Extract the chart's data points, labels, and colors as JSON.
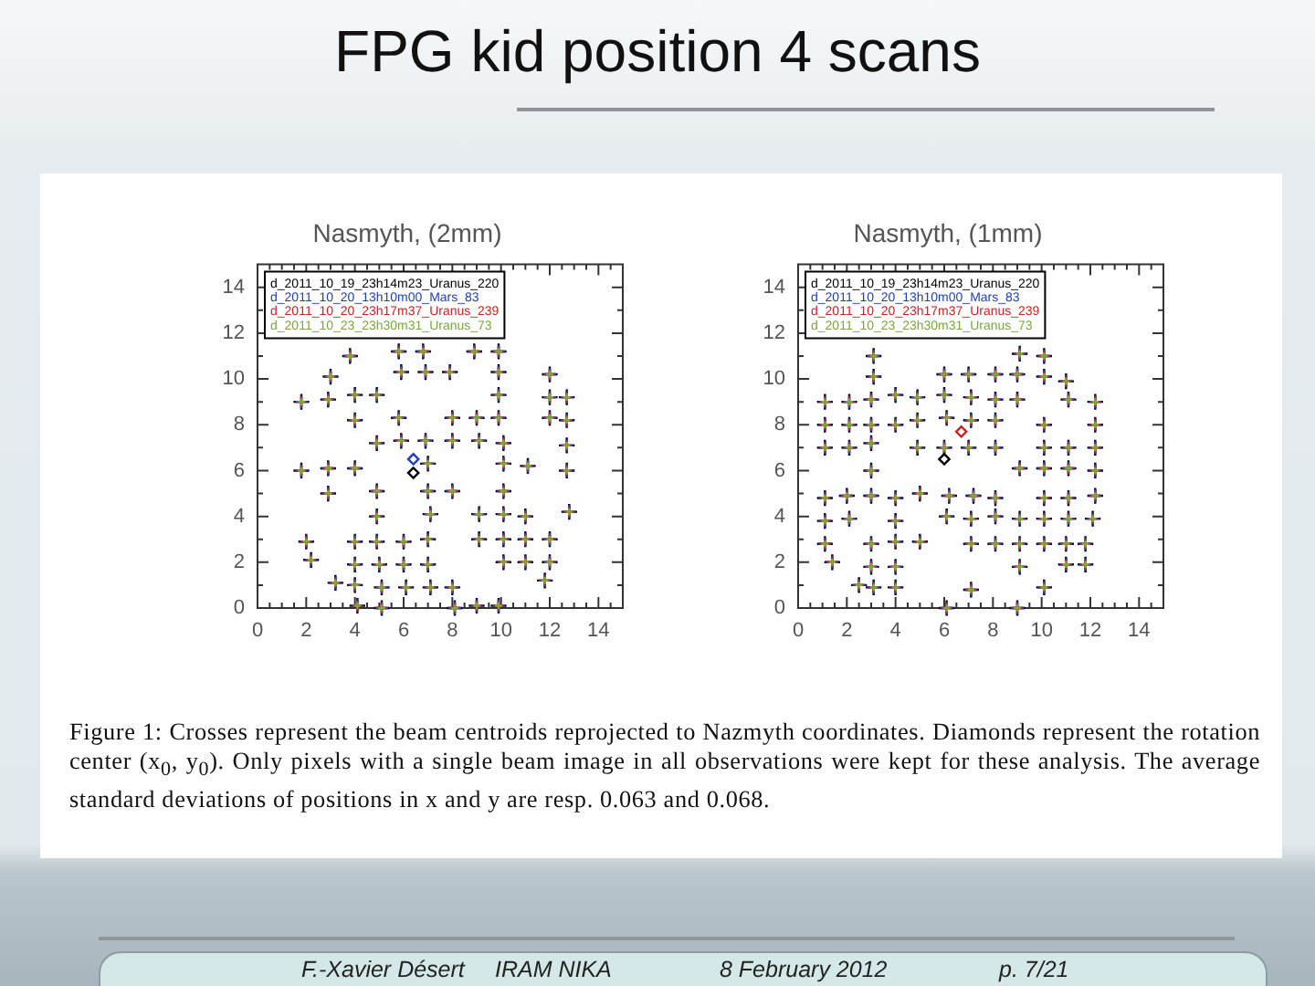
{
  "chart_data": [
    {
      "type": "other",
      "title": "FPG kid position 4 scans"
    },
    {
      "type": "scatter",
      "title": "Nasmyth, (2mm)",
      "marker": "cross",
      "legend": "top left",
      "xlim": [
        0,
        15
      ],
      "ylim": [
        0,
        15
      ],
      "xticks": [
        0,
        {
          "value": 0.5,
          "label": null
        },
        {
          "value": 1,
          "label": null
        },
        {
          "value": 1.5,
          "label": null
        },
        2,
        {
          "value": 2.5,
          "label": null
        },
        {
          "value": 3,
          "label": null
        },
        {
          "value": 3.5,
          "label": null
        },
        4,
        {
          "value": 4.5,
          "label": null
        },
        {
          "value": 5,
          "label": null
        },
        {
          "value": 5.5,
          "label": null
        },
        6,
        {
          "value": 6.5,
          "label": null
        },
        {
          "value": 7,
          "label": null
        },
        {
          "value": 7.5,
          "label": null
        },
        8,
        {
          "value": 8.5,
          "label": null
        },
        {
          "value": 9,
          "label": null
        },
        {
          "value": 9.5,
          "label": null
        },
        10,
        {
          "value": 10.5,
          "label": null
        },
        {
          "value": 11,
          "label": null
        },
        {
          "value": 11.5,
          "label": null
        },
        12,
        {
          "value": 12.5,
          "label": null
        },
        {
          "value": 13,
          "label": null
        },
        {
          "value": 13.5,
          "label": null
        },
        14,
        {
          "value": 14.5,
          "label": null
        }
      ],
      "yticks": [
        0,
        {
          "value": 1,
          "label": null
        },
        2,
        {
          "value": 3,
          "label": null
        },
        4,
        {
          "value": 5,
          "label": null
        },
        6,
        {
          "value": 7,
          "label": null
        },
        8,
        {
          "value": 9,
          "label": null
        },
        10,
        {
          "value": 11,
          "label": null
        },
        12,
        {
          "value": 13,
          "label": null
        },
        14
      ],
      "x": [
        3.8,
        5.8,
        6.8,
        8.9,
        9.9,
        3.0,
        5.9,
        6.9,
        7.9,
        9.9,
        12.0,
        1.8,
        2.9,
        4.0,
        4.9,
        9.9,
        12.0,
        12.7,
        4.0,
        5.8,
        8.0,
        9.0,
        9.9,
        12.0,
        12.7,
        4.9,
        5.9,
        6.9,
        8.0,
        9.1,
        10.1,
        12.7,
        1.8,
        2.9,
        4.0,
        7.0,
        10.1,
        11.1,
        12.7,
        2.9,
        4.9,
        7.0,
        8.0,
        10.1,
        4.9,
        7.1,
        9.1,
        10.1,
        11.0,
        12.8,
        2.0,
        4.0,
        4.9,
        6.0,
        7.0,
        9.1,
        10.1,
        11.0,
        12.0,
        2.2,
        4.0,
        5.0,
        6.0,
        7.0,
        10.1,
        11.0,
        12.0,
        3.2,
        4.0,
        5.1,
        6.1,
        7.1,
        8.0,
        11.8,
        4.1,
        5.1,
        8.1,
        9.0,
        9.9
      ],
      "series": [
        {
          "name": "d_2011_10_19_23h14m23_Uranus_220",
          "color": "#000000",
          "values": [
            11.0,
            11.2,
            11.2,
            11.2,
            11.2,
            10.1,
            10.3,
            10.3,
            10.3,
            10.3,
            10.2,
            9.0,
            9.1,
            9.3,
            9.3,
            9.3,
            9.2,
            9.2,
            8.2,
            8.3,
            8.3,
            8.3,
            8.3,
            8.3,
            8.2,
            7.2,
            7.3,
            7.3,
            7.3,
            7.3,
            7.2,
            7.1,
            6.0,
            6.1,
            6.1,
            6.3,
            6.3,
            6.2,
            6.0,
            5.0,
            5.1,
            5.1,
            5.1,
            5.1,
            4.0,
            4.1,
            4.1,
            4.1,
            4.0,
            4.2,
            2.9,
            2.9,
            2.9,
            2.9,
            3.0,
            3.0,
            3.0,
            3.0,
            3.0,
            2.1,
            1.9,
            1.9,
            1.9,
            1.9,
            2.0,
            2.0,
            2.0,
            1.1,
            1.0,
            0.9,
            0.9,
            0.9,
            0.9,
            1.2,
            0.1,
            0.0,
            0.0,
            0.1,
            0.1
          ]
        },
        {
          "name": "d_2011_10_20_13h10m00_Mars_83",
          "color": "#1f3fbf",
          "values": [
            11.0,
            11.2,
            11.2,
            11.2,
            11.2,
            10.1,
            10.3,
            10.3,
            10.3,
            10.3,
            10.2,
            9.0,
            9.1,
            9.3,
            9.3,
            9.3,
            9.2,
            9.2,
            8.2,
            8.3,
            8.3,
            8.3,
            8.3,
            8.3,
            8.2,
            7.2,
            7.3,
            7.3,
            7.3,
            7.3,
            7.2,
            7.1,
            6.0,
            6.1,
            6.1,
            6.3,
            6.3,
            6.2,
            6.0,
            5.0,
            5.1,
            5.1,
            5.1,
            5.1,
            4.0,
            4.1,
            4.1,
            4.1,
            4.0,
            4.2,
            2.9,
            2.9,
            2.9,
            2.9,
            3.0,
            3.0,
            3.0,
            3.0,
            3.0,
            2.1,
            1.9,
            1.9,
            1.9,
            1.9,
            2.0,
            2.0,
            2.0,
            1.1,
            1.0,
            0.9,
            0.9,
            0.9,
            0.9,
            1.2,
            0.1,
            0.0,
            0.0,
            0.1,
            0.1
          ]
        },
        {
          "name": "d_2011_10_20_23h17m37_Uranus_239",
          "color": "#cc2222",
          "values": [
            11.0,
            11.2,
            11.2,
            11.2,
            11.2,
            10.1,
            10.3,
            10.3,
            10.3,
            10.3,
            10.2,
            9.0,
            9.1,
            9.3,
            9.3,
            9.3,
            9.2,
            9.2,
            8.2,
            8.3,
            8.3,
            8.3,
            8.3,
            8.3,
            8.2,
            7.2,
            7.3,
            7.3,
            7.3,
            7.3,
            7.2,
            7.1,
            6.0,
            6.1,
            6.1,
            6.3,
            6.3,
            6.2,
            6.0,
            5.0,
            5.1,
            5.1,
            5.1,
            5.1,
            4.0,
            4.1,
            4.1,
            4.1,
            4.0,
            4.2,
            2.9,
            2.9,
            2.9,
            2.9,
            3.0,
            3.0,
            3.0,
            3.0,
            3.0,
            2.1,
            1.9,
            1.9,
            1.9,
            1.9,
            2.0,
            2.0,
            2.0,
            1.1,
            1.0,
            0.9,
            0.9,
            0.9,
            0.9,
            1.2,
            0.1,
            0.0,
            0.0,
            0.1,
            0.1
          ]
        },
        {
          "name": "d_2011_10_23_23h30m31_Uranus_73",
          "color": "#7aa83c",
          "values": [
            11.0,
            11.2,
            11.2,
            11.2,
            11.2,
            10.1,
            10.3,
            10.3,
            10.3,
            10.3,
            10.2,
            9.0,
            9.1,
            9.3,
            9.3,
            9.3,
            9.2,
            9.2,
            8.2,
            8.3,
            8.3,
            8.3,
            8.3,
            8.3,
            8.2,
            7.2,
            7.3,
            7.3,
            7.3,
            7.3,
            7.2,
            7.1,
            6.0,
            6.1,
            6.1,
            6.3,
            6.3,
            6.2,
            6.0,
            5.0,
            5.1,
            5.1,
            5.1,
            5.1,
            4.0,
            4.1,
            4.1,
            4.1,
            4.0,
            4.2,
            2.9,
            2.9,
            2.9,
            2.9,
            3.0,
            3.0,
            3.0,
            3.0,
            3.0,
            2.1,
            1.9,
            1.9,
            1.9,
            1.9,
            2.0,
            2.0,
            2.0,
            1.1,
            1.0,
            0.9,
            0.9,
            0.9,
            0.9,
            1.2,
            0.1,
            0.0,
            0.0,
            0.1,
            0.1
          ]
        },
        {
          "marker": "diamond",
          "colors": [
            "#1f3fbf",
            "#000000"
          ],
          "x": [
            6.4,
            6.4
          ],
          "values": [
            6.5,
            5.9
          ]
        }
      ]
    },
    {
      "type": "scatter",
      "title": "Nasmyth, (1mm)",
      "marker": "cross",
      "legend": "top left",
      "xlim": [
        0,
        15
      ],
      "ylim": [
        0,
        15
      ],
      "xticks": [
        0,
        {
          "value": 0.5,
          "label": null
        },
        {
          "value": 1,
          "label": null
        },
        {
          "value": 1.5,
          "label": null
        },
        2,
        {
          "value": 2.5,
          "label": null
        },
        {
          "value": 3,
          "label": null
        },
        {
          "value": 3.5,
          "label": null
        },
        4,
        {
          "value": 4.5,
          "label": null
        },
        {
          "value": 5,
          "label": null
        },
        {
          "value": 5.5,
          "label": null
        },
        6,
        {
          "value": 6.5,
          "label": null
        },
        {
          "value": 7,
          "label": null
        },
        {
          "value": 7.5,
          "label": null
        },
        8,
        {
          "value": 8.5,
          "label": null
        },
        {
          "value": 9,
          "label": null
        },
        {
          "value": 9.5,
          "label": null
        },
        10,
        {
          "value": 10.5,
          "label": null
        },
        {
          "value": 11,
          "label": null
        },
        {
          "value": 11.5,
          "label": null
        },
        12,
        {
          "value": 12.5,
          "label": null
        },
        {
          "value": 13,
          "label": null
        },
        {
          "value": 13.5,
          "label": null
        },
        14,
        {
          "value": 14.5,
          "label": null
        }
      ],
      "yticks": [
        0,
        {
          "value": 1,
          "label": null
        },
        2,
        {
          "value": 3,
          "label": null
        },
        4,
        {
          "value": 5,
          "label": null
        },
        6,
        {
          "value": 7,
          "label": null
        },
        8,
        {
          "value": 9,
          "label": null
        },
        10,
        {
          "value": 11,
          "label": null
        },
        12,
        {
          "value": 13,
          "label": null
        },
        14
      ],
      "x": [
        3.1,
        9.1,
        10.1,
        3.1,
        6.0,
        7.0,
        8.1,
        9.0,
        10.1,
        11.0,
        1.1,
        2.1,
        3.0,
        4.0,
        4.9,
        6.0,
        7.1,
        8.1,
        9.0,
        11.1,
        12.2,
        1.1,
        2.1,
        3.0,
        4.0,
        4.9,
        6.1,
        7.1,
        8.1,
        10.1,
        12.2,
        1.1,
        2.1,
        3.0,
        4.9,
        6.0,
        7.0,
        8.1,
        10.1,
        11.1,
        12.2,
        3.0,
        9.1,
        10.1,
        11.1,
        12.2,
        1.1,
        2.0,
        3.0,
        4.0,
        5.0,
        6.2,
        7.2,
        8.1,
        10.1,
        11.1,
        12.2,
        1.1,
        2.1,
        4.0,
        6.1,
        7.1,
        8.1,
        9.1,
        10.1,
        11.1,
        12.1,
        1.1,
        3.0,
        4.0,
        5.0,
        7.1,
        8.1,
        9.1,
        10.1,
        11.0,
        11.8,
        1.4,
        3.0,
        4.0,
        9.1,
        11.0,
        11.8,
        2.5,
        3.1,
        4.0,
        7.1,
        10.1,
        6.1,
        9.0
      ],
      "series": [
        {
          "name": "d_2011_10_19_23h14m23_Uranus_220",
          "color": "#000000",
          "values": [
            11.0,
            11.1,
            11.0,
            10.1,
            10.2,
            10.2,
            10.2,
            10.2,
            10.1,
            9.9,
            9.0,
            9.0,
            9.1,
            9.3,
            9.2,
            9.3,
            9.2,
            9.1,
            9.1,
            9.1,
            9.0,
            8.0,
            8.0,
            8.0,
            8.0,
            8.2,
            8.3,
            8.2,
            8.2,
            8.0,
            8.0,
            7.0,
            7.0,
            7.2,
            7.0,
            7.0,
            7.0,
            7.0,
            7.0,
            7.0,
            7.0,
            6.0,
            6.1,
            6.1,
            6.1,
            6.0,
            4.8,
            4.9,
            4.9,
            4.8,
            5.0,
            4.9,
            4.9,
            4.8,
            4.8,
            4.8,
            4.9,
            3.8,
            3.9,
            3.8,
            4.0,
            3.9,
            4.0,
            3.9,
            3.9,
            3.9,
            3.9,
            2.8,
            2.8,
            2.9,
            2.9,
            2.8,
            2.8,
            2.8,
            2.8,
            2.8,
            2.8,
            2.0,
            1.8,
            1.8,
            1.8,
            1.9,
            1.9,
            1.0,
            0.9,
            0.9,
            0.8,
            0.9,
            0.0,
            0.0
          ]
        },
        {
          "name": "d_2011_10_20_13h10m00_Mars_83",
          "color": "#1f3fbf",
          "values": [
            11.0,
            11.1,
            11.0,
            10.1,
            10.2,
            10.2,
            10.2,
            10.2,
            10.1,
            9.9,
            9.0,
            9.0,
            9.1,
            9.3,
            9.2,
            9.3,
            9.2,
            9.1,
            9.1,
            9.1,
            9.0,
            8.0,
            8.0,
            8.0,
            8.0,
            8.2,
            8.3,
            8.2,
            8.2,
            8.0,
            8.0,
            7.0,
            7.0,
            7.2,
            7.0,
            7.0,
            7.0,
            7.0,
            7.0,
            7.0,
            7.0,
            6.0,
            6.1,
            6.1,
            6.1,
            6.0,
            4.8,
            4.9,
            4.9,
            4.8,
            5.0,
            4.9,
            4.9,
            4.8,
            4.8,
            4.8,
            4.9,
            3.8,
            3.9,
            3.8,
            4.0,
            3.9,
            4.0,
            3.9,
            3.9,
            3.9,
            3.9,
            2.8,
            2.8,
            2.9,
            2.9,
            2.8,
            2.8,
            2.8,
            2.8,
            2.8,
            2.8,
            2.0,
            1.8,
            1.8,
            1.8,
            1.9,
            1.9,
            1.0,
            0.9,
            0.9,
            0.8,
            0.9,
            0.0,
            0.0
          ]
        },
        {
          "name": "d_2011_10_20_23h17m37_Uranus_239",
          "color": "#cc2222",
          "values": [
            11.0,
            11.1,
            11.0,
            10.1,
            10.2,
            10.2,
            10.2,
            10.2,
            10.1,
            9.9,
            9.0,
            9.0,
            9.1,
            9.3,
            9.2,
            9.3,
            9.2,
            9.1,
            9.1,
            9.1,
            9.0,
            8.0,
            8.0,
            8.0,
            8.0,
            8.2,
            8.3,
            8.2,
            8.2,
            8.0,
            8.0,
            7.0,
            7.0,
            7.2,
            7.0,
            7.0,
            7.0,
            7.0,
            7.0,
            7.0,
            7.0,
            6.0,
            6.1,
            6.1,
            6.1,
            6.0,
            4.8,
            4.9,
            4.9,
            4.8,
            5.0,
            4.9,
            4.9,
            4.8,
            4.8,
            4.8,
            4.9,
            3.8,
            3.9,
            3.8,
            4.0,
            3.9,
            4.0,
            3.9,
            3.9,
            3.9,
            3.9,
            2.8,
            2.8,
            2.9,
            2.9,
            2.8,
            2.8,
            2.8,
            2.8,
            2.8,
            2.8,
            2.0,
            1.8,
            1.8,
            1.8,
            1.9,
            1.9,
            1.0,
            0.9,
            0.9,
            0.8,
            0.9,
            0.0,
            0.0
          ]
        },
        {
          "name": "d_2011_10_23_23h30m31_Uranus_73",
          "color": "#7aa83c",
          "values": [
            11.0,
            11.1,
            11.0,
            10.1,
            10.2,
            10.2,
            10.2,
            10.2,
            10.1,
            9.9,
            9.0,
            9.0,
            9.1,
            9.3,
            9.2,
            9.3,
            9.2,
            9.1,
            9.1,
            9.1,
            9.0,
            8.0,
            8.0,
            8.0,
            8.0,
            8.2,
            8.3,
            8.2,
            8.2,
            8.0,
            8.0,
            7.0,
            7.0,
            7.2,
            7.0,
            7.0,
            7.0,
            7.0,
            7.0,
            7.0,
            7.0,
            6.0,
            6.1,
            6.1,
            6.1,
            6.0,
            4.8,
            4.9,
            4.9,
            4.8,
            5.0,
            4.9,
            4.9,
            4.8,
            4.8,
            4.8,
            4.9,
            3.8,
            3.9,
            3.8,
            4.0,
            3.9,
            4.0,
            3.9,
            3.9,
            3.9,
            3.9,
            2.8,
            2.8,
            2.9,
            2.9,
            2.8,
            2.8,
            2.8,
            2.8,
            2.8,
            2.8,
            2.0,
            1.8,
            1.8,
            1.8,
            1.9,
            1.9,
            1.0,
            0.9,
            0.9,
            0.8,
            0.9,
            0.0,
            0.0
          ]
        },
        {
          "marker": "diamond",
          "colors": [
            "#000000",
            "#cc2222"
          ],
          "x": [
            6.0,
            6.7
          ],
          "values": [
            6.5,
            7.7
          ]
        }
      ]
    },
    {
      "type": "other",
      "annotations": [
        "Figure 1: Crosses represent the beam centroids reprojected to Nazmyth coordinates. Diamonds represent the rotation center (x$_{0}$, y$_{0}$). Only pixels with a single beam image in all observations were kept for these analysis. The average standard deviations of positions in x and y are resp. 0.063 and 0.068.",
        "F.-Xavier Désert",
        "IRAM NIKA",
        "8 February 2012",
        "p. 7/21"
      ]
    }
  ]
}
